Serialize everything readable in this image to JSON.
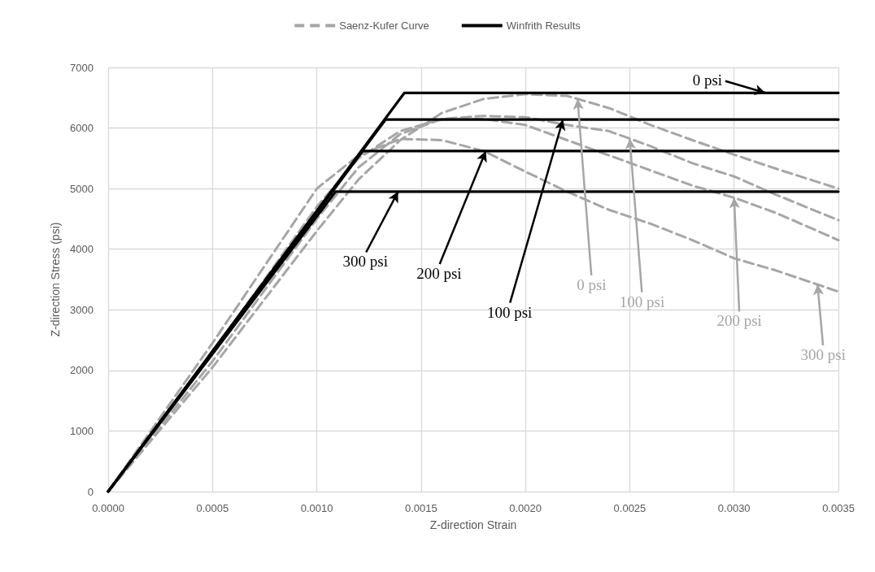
{
  "chart_data": {
    "type": "line",
    "xlabel": "Z-direction Strain",
    "ylabel": "Z-direction Stress (psi)",
    "xlim": [
      0,
      0.0035
    ],
    "ylim": [
      0,
      7000
    ],
    "xticks": [
      {
        "value": 0,
        "label": "0.0000"
      },
      {
        "value": 0.0005,
        "label": "0.0005"
      },
      {
        "value": 0.001,
        "label": "0.0010"
      },
      {
        "value": 0.0015,
        "label": "0.0015"
      },
      {
        "value": 0.002,
        "label": "0.0020"
      },
      {
        "value": 0.0025,
        "label": "0.0025"
      },
      {
        "value": 0.003,
        "label": "0.0030"
      },
      {
        "value": 0.0035,
        "label": "0.0035"
      }
    ],
    "yticks": [
      0,
      1000,
      2000,
      3000,
      4000,
      5000,
      6000,
      7000
    ],
    "grid": true,
    "legend": "top",
    "marker": "none",
    "series": [
      {
        "name": "Saenz-Kufer Curve",
        "color": "#a6a6a6",
        "line_style": "dashed",
        "x": [
          0,
          0.0005,
          0.001,
          0.0012,
          0.0014,
          0.0016,
          0.0018,
          0.002,
          0.0022,
          0.0024,
          0.0026,
          0.0028,
          0.003,
          0.0032,
          0.0035
        ],
        "values": [
          0,
          2050,
          4300,
          5150,
          5800,
          6250,
          6480,
          6560,
          6530,
          6330,
          6050,
          5800,
          5560,
          5330,
          5000
        ]
      },
      {
        "color": "#a6a6a6",
        "line_style": "dashed",
        "x": [
          0,
          0.0005,
          0.001,
          0.0012,
          0.0014,
          0.0016,
          0.0018,
          0.002,
          0.0022,
          0.0024,
          0.0026,
          0.0028,
          0.003,
          0.0032,
          0.0035
        ],
        "values": [
          0,
          2150,
          4500,
          5350,
          5900,
          6150,
          6200,
          6180,
          6050,
          5950,
          5700,
          5420,
          5200,
          4900,
          4480
        ]
      },
      {
        "color": "#a6a6a6",
        "line_style": "dashed",
        "x": [
          0,
          0.0005,
          0.001,
          0.0012,
          0.0014,
          0.0016,
          0.0018,
          0.002,
          0.0022,
          0.0024,
          0.0026,
          0.0028,
          0.003,
          0.0032,
          0.0035
        ],
        "values": [
          0,
          2300,
          4700,
          5500,
          5950,
          6150,
          6150,
          6050,
          5800,
          5550,
          5300,
          5050,
          4850,
          4600,
          4150
        ]
      },
      {
        "color": "#a6a6a6",
        "line_style": "dashed",
        "x": [
          0,
          0.0005,
          0.001,
          0.0012,
          0.0014,
          0.0016,
          0.0018,
          0.002,
          0.0022,
          0.0024,
          0.0026,
          0.0028,
          0.003,
          0.0032,
          0.0035
        ],
        "values": [
          0,
          2450,
          5000,
          5550,
          5820,
          5800,
          5620,
          5280,
          4950,
          4650,
          4420,
          4150,
          3850,
          3650,
          3300
        ]
      },
      {
        "name": "Winfrith Results",
        "color": "#000000",
        "line_style": "solid",
        "x": [
          0,
          0.00142,
          0.0035
        ],
        "values": [
          0,
          6580,
          6580
        ]
      },
      {
        "color": "#000000",
        "line_style": "solid",
        "x": [
          0,
          0.00133,
          0.0035
        ],
        "values": [
          0,
          6140,
          6140
        ]
      },
      {
        "color": "#000000",
        "line_style": "solid",
        "x": [
          0,
          0.00122,
          0.0035
        ],
        "values": [
          0,
          5620,
          5620
        ]
      },
      {
        "color": "#000000",
        "line_style": "solid",
        "x": [
          0,
          0.00109,
          0.0035
        ],
        "values": [
          0,
          4950,
          4950
        ]
      }
    ],
    "annotations": [
      {
        "text": "0 psi",
        "x": 0.00315,
        "y": 6580
      },
      {
        "text": "300 psi",
        "x": 0.00139,
        "y": 4950
      },
      {
        "text": "200 psi",
        "x": 0.00181,
        "y": 5620
      },
      {
        "text": "100 psi",
        "x": 0.00218,
        "y": 6140
      },
      {
        "text": "0 psi",
        "x": 0.00225,
        "y": 6480
      },
      {
        "text": "100 psi",
        "x": 0.0025,
        "y": 5825
      },
      {
        "text": "200 psi",
        "x": 0.003,
        "y": 4850
      },
      {
        "text": "300 psi",
        "x": 0.0034,
        "y": 3420
      }
    ]
  }
}
